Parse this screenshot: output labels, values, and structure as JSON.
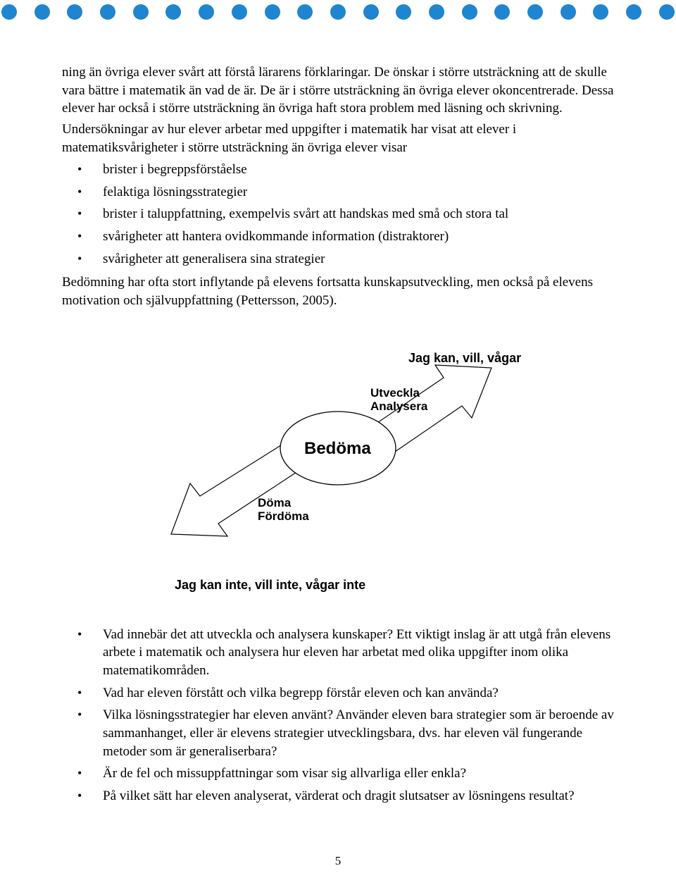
{
  "dots": {
    "count": 21,
    "color": "#1f85d0",
    "diameter": 22
  },
  "body": {
    "p1": "ning än övriga elever svårt att förstå lärarens förklaringar. De önskar i större utsträckning att de skulle vara bättre i matematik än vad de är. De är i större utsträckning än övriga elever okoncentrerade. Dessa elever har också i större utsträckning än övriga haft stora problem med läsning och skrivning.",
    "p2": "Undersökningar av hur elever arbetar med uppgifter i matematik har visat att elever i matematiksvårigheter i större utsträckning än övriga elever visar",
    "list1": [
      "brister i begreppsförståelse",
      "felaktiga lösningsstrategier",
      "brister i taluppfattning, exempelvis svårt att handskas med små och stora tal",
      "svårigheter att hantera ovidkommande information (distraktorer)",
      "svårigheter att generalisera sina strategier"
    ],
    "p3": "Bedömning har ofta stort inflytande på elevens fortsatta kunskapsutveckling, men också på elevens motivation och självuppfattning (Pettersson, 2005).",
    "list2": [
      "Vad innebär det att utveckla och analysera kunskaper? Ett viktigt inslag är att utgå från elevens arbete i matematik och analysera hur eleven har arbetat med olika uppgifter inom olika matematikområden.",
      "Vad har eleven förstått och vilka begrepp förstår eleven och kan använda?",
      "Vilka lösningsstrategier har eleven använt? Använder eleven bara strategier som är beroende av sammanhanget, eller är elevens strategier utvecklingsbara, dvs. har eleven väl fungerande metoder som är generaliserbara?",
      "Är de fel och missuppfattningar som visar sig allvarliga eller enkla?",
      "På vilket sätt har eleven analyserat, värderat och dragit slutsatser av lösningens resultat?"
    ]
  },
  "diagram": {
    "type": "arrow-ellipse",
    "center_label": "Bedöma",
    "up_small_label": "Utveckla\nAnalysera",
    "down_small_label": "Döma\nFördöma",
    "up_edge_label": "Jag kan, vill, vågar",
    "down_edge_label": "Jag kan inte, vill inte, vågar inte",
    "stroke": "#000000",
    "fill": "#ffffff",
    "bg": "#ffffff"
  },
  "page_number": "5"
}
